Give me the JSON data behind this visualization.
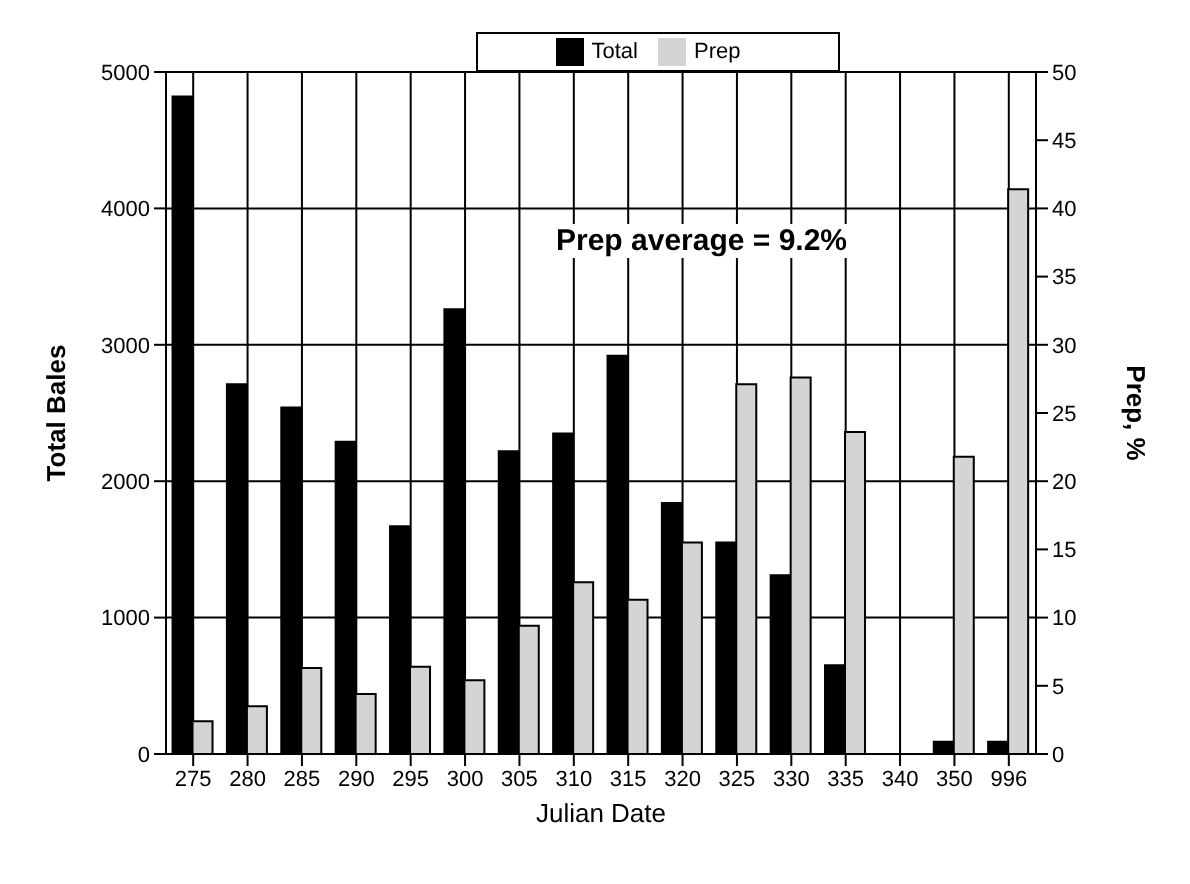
{
  "chart_data": {
    "type": "bar",
    "xlabel": "Julian Date",
    "ylabel": "Total Bales",
    "y2label": "Prep, %",
    "categories": [
      "275",
      "280",
      "285",
      "290",
      "295",
      "300",
      "305",
      "310",
      "315",
      "320",
      "325",
      "330",
      "335",
      "340",
      "350",
      "996"
    ],
    "series": [
      {
        "name": "Total",
        "color": "#000000",
        "values": [
          4820,
          2710,
          2540,
          2290,
          1670,
          3260,
          2220,
          2350,
          2920,
          1840,
          1550,
          1310,
          650,
          null,
          90,
          90
        ]
      },
      {
        "name": "Prep",
        "color": "#d4d4d4",
        "axis": "y2",
        "values": [
          2.4,
          3.5,
          6.3,
          4.4,
          6.4,
          5.4,
          9.4,
          12.6,
          11.3,
          15.5,
          27.1,
          27.6,
          23.6,
          null,
          21.8,
          41.4
        ]
      }
    ],
    "ylim": [
      0,
      5000
    ],
    "yticks": [
      0,
      1000,
      2000,
      3000,
      4000,
      5000
    ],
    "y2lim": [
      0,
      50
    ],
    "y2ticks": [
      0,
      5,
      10,
      15,
      20,
      25,
      30,
      35,
      40,
      45,
      50
    ],
    "grid": true,
    "legend": "top",
    "annotations": [
      "Prep average = 9.2%"
    ]
  }
}
